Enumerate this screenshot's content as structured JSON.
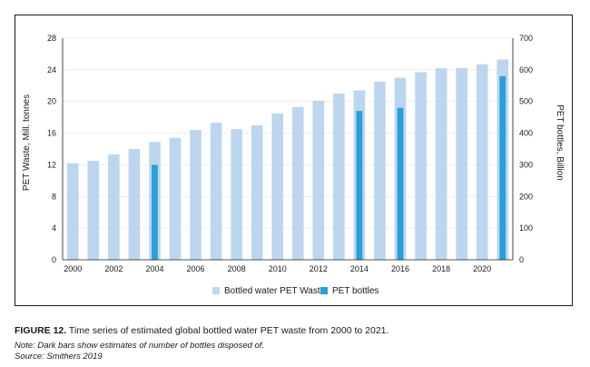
{
  "chart_data": {
    "type": "bar",
    "title": "",
    "xlabel": "",
    "ylabel": "PET Waste, Mill. tonnes",
    "ylabel_right": "PET bottles, Billion",
    "ylim": [
      0,
      28
    ],
    "ylim_right": [
      0,
      700
    ],
    "yticks": [
      "0",
      "4",
      "8",
      "12",
      "16",
      "20",
      "24",
      "28"
    ],
    "yticks_right": [
      "0",
      "100",
      "200",
      "300",
      "400",
      "500",
      "600",
      "700"
    ],
    "x": [
      2000,
      2001,
      2002,
      2003,
      2004,
      2005,
      2006,
      2007,
      2008,
      2009,
      2010,
      2011,
      2012,
      2013,
      2014,
      2015,
      2016,
      2017,
      2018,
      2019,
      2020,
      2021
    ],
    "xticks": [
      "2000",
      "2002",
      "2004",
      "2006",
      "2008",
      "2010",
      "2012",
      "2014",
      "2016",
      "2018",
      "2020"
    ],
    "series": [
      {
        "name": "Bottled water PET Waste",
        "axis": "left",
        "color": "#bcd6ef",
        "values": [
          12.2,
          12.5,
          13.3,
          14.0,
          14.9,
          15.4,
          16.4,
          17.3,
          16.5,
          17.0,
          18.5,
          19.3,
          20.1,
          21.0,
          21.4,
          22.5,
          23.0,
          23.7,
          24.2,
          24.2,
          24.7,
          25.3
        ]
      },
      {
        "name": "PET bottles",
        "axis": "right",
        "color": "#2a9fd8",
        "values": [
          null,
          null,
          null,
          null,
          300,
          null,
          null,
          null,
          null,
          null,
          null,
          null,
          null,
          null,
          470,
          null,
          480,
          null,
          null,
          null,
          null,
          580
        ]
      }
    ],
    "legend": "bottom"
  },
  "caption": {
    "label": "FIGURE 12.",
    "text": " Time series of estimated global bottled water PET waste from 2000 to 2021."
  },
  "note": {
    "line1": "Note: Dark bars show estimates of number of bottles disposed of.",
    "line2": "Source: Smithers 2019"
  }
}
